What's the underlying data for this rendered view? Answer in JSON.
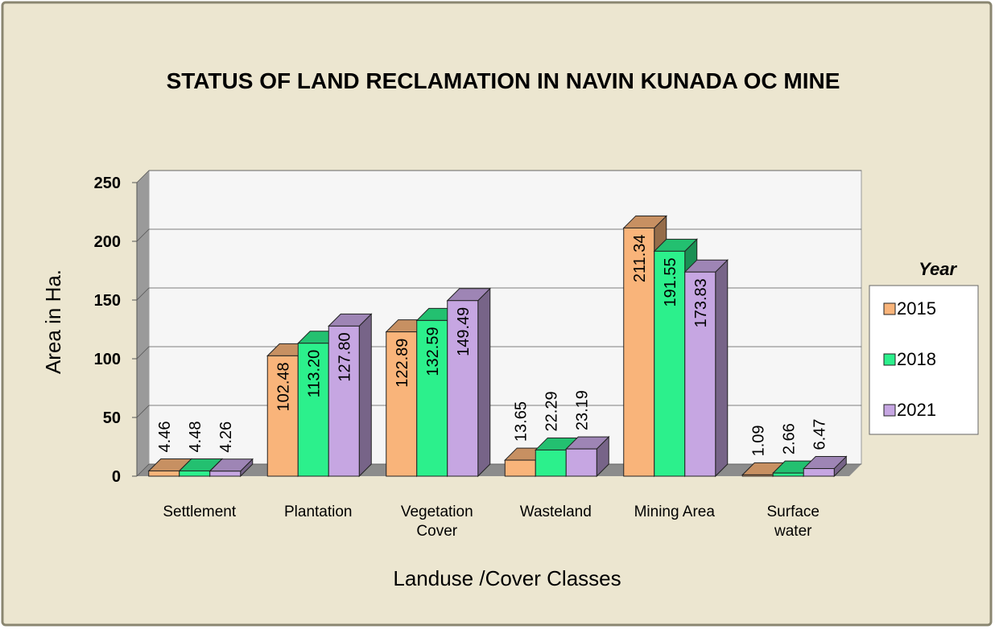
{
  "chart_data": {
    "type": "bar3d",
    "title": "STATUS OF LAND RECLAMATION IN NAVIN KUNADA OC MINE",
    "x_label": "Landuse /Cover Classes",
    "y_label": "Area in Ha.",
    "legend_title": "Year",
    "categories": [
      "Settlement",
      "Plantation",
      "Vegetation Cover",
      "Wasteland",
      "Mining Area",
      "Surface water"
    ],
    "series": [
      {
        "name": "2015",
        "color": "#f9b47a",
        "values": [
          4.46,
          102.48,
          122.89,
          13.65,
          211.34,
          1.09
        ],
        "value_labels": [
          "4.46",
          "102.48",
          "122.89",
          "13.65",
          "211.34",
          "1.09"
        ]
      },
      {
        "name": "2018",
        "color": "#2cf08c",
        "values": [
          4.48,
          113.2,
          132.59,
          22.29,
          191.55,
          2.66
        ],
        "value_labels": [
          "4.48",
          "113.20",
          "132.59",
          "22.29",
          "191.55",
          "2.66"
        ]
      },
      {
        "name": "2021",
        "color": "#c6a6e2",
        "values": [
          4.26,
          127.8,
          149.49,
          23.19,
          173.83,
          6.47
        ],
        "value_labels": [
          "4.26",
          "127.80",
          "149.49",
          "23.19",
          "173.83",
          "6.47"
        ]
      }
    ],
    "ylim": [
      0,
      250
    ],
    "yticks": [
      0,
      50,
      100,
      150,
      200,
      250
    ],
    "grid": true,
    "legend": "right"
  }
}
